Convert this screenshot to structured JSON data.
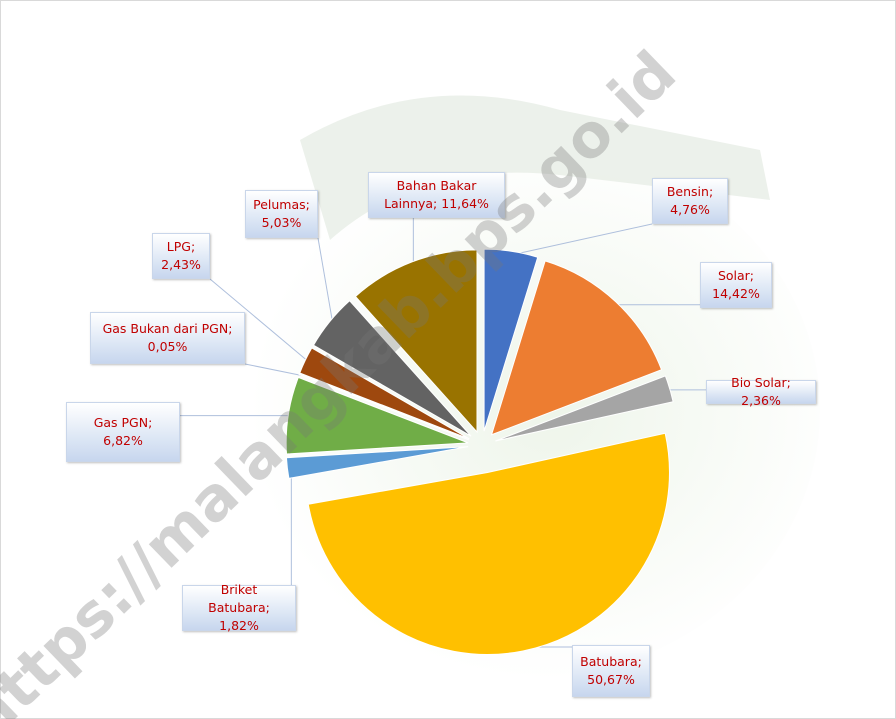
{
  "chart_data": {
    "type": "pie",
    "values": [
      4.76,
      14.42,
      2.36,
      50.67,
      1.82,
      6.82,
      0.05,
      2.43,
      5.03,
      11.64
    ],
    "value_labels": [
      "Bensin; 4,76%",
      "Solar; 14,42%",
      "Bio Solar; 2,36%",
      "Batubara; 50,67%",
      "Briket Batubara; 1,82%",
      "Gas PGN; 6,82%",
      "Gas Bukan dari PGN; 0,05%",
      "LPG; 2,43%",
      "Pelumas; 5,03%",
      "Bahan Bakar Lainnya; 11,64%"
    ],
    "colors": [
      "#4472c4",
      "#ed7d31",
      "#a5a5a5",
      "#ffc000",
      "#5b9bd5",
      "#70ad47",
      "#264478",
      "#9e480e",
      "#636363",
      "#997300"
    ],
    "watermark": "https://malangkab.bps.go.id"
  }
}
